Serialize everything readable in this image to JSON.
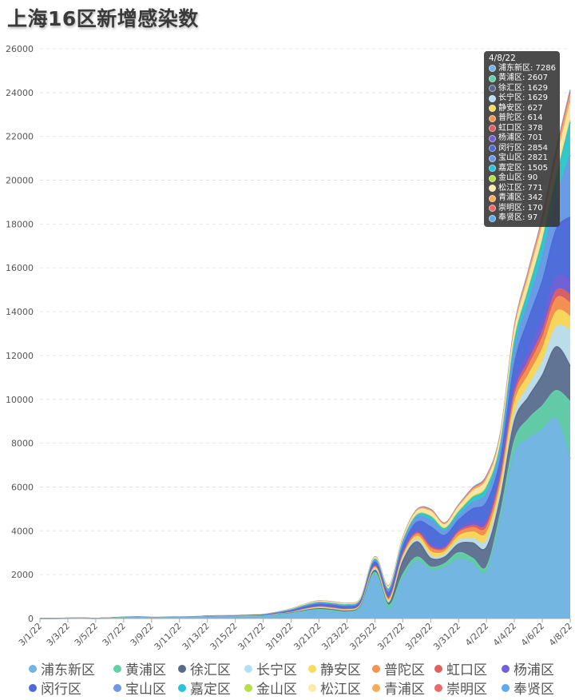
{
  "title": "上海16区新增感染数",
  "chart_data": {
    "type": "area",
    "stacked": true,
    "title": "上海16区新增感染数",
    "ylim": [
      0,
      26000
    ],
    "yticks": [
      0,
      2000,
      4000,
      6000,
      8000,
      10000,
      12000,
      14000,
      16000,
      18000,
      20000,
      22000,
      24000,
      26000
    ],
    "x": [
      "3/1/22",
      "3/2/22",
      "3/3/22",
      "3/4/22",
      "3/5/22",
      "3/6/22",
      "3/7/22",
      "3/8/22",
      "3/9/22",
      "3/10/22",
      "3/11/22",
      "3/12/22",
      "3/13/22",
      "3/14/22",
      "3/15/22",
      "3/16/22",
      "3/17/22",
      "3/18/22",
      "3/19/22",
      "3/20/22",
      "3/21/22",
      "3/22/22",
      "3/23/22",
      "3/24/22",
      "3/25/22",
      "3/26/22",
      "3/27/22",
      "3/28/22",
      "3/29/22",
      "3/30/22",
      "3/31/22",
      "4/1/22",
      "4/2/22",
      "4/3/22",
      "4/4/22",
      "4/5/22",
      "4/6/22",
      "4/7/22",
      "4/8/22"
    ],
    "xticks": [
      "3/1/22",
      "3/3/22",
      "3/5/22",
      "3/7/22",
      "3/9/22",
      "3/11/22",
      "3/13/22",
      "3/15/22",
      "3/17/22",
      "3/19/22",
      "3/21/22",
      "3/23/22",
      "3/25/22",
      "3/27/22",
      "3/29/22",
      "3/31/22",
      "4/2/22",
      "4/4/22",
      "4/6/22",
      "4/8/22"
    ],
    "grid": true,
    "legend_position": "bottom",
    "series": [
      {
        "name": "浦东新区",
        "color": "#73b4e6",
        "values": [
          2,
          3,
          5,
          8,
          4,
          10,
          30,
          50,
          20,
          30,
          40,
          50,
          60,
          70,
          80,
          90,
          100,
          150,
          200,
          300,
          350,
          300,
          250,
          500,
          2000,
          400,
          1800,
          2600,
          2200,
          2300,
          2700,
          2500,
          2100,
          4500,
          7500,
          8200,
          8600,
          9100,
          7286
        ]
      },
      {
        "name": "黄浦区",
        "color": "#62d1a8",
        "values": [
          1,
          1,
          2,
          2,
          1,
          3,
          5,
          5,
          5,
          5,
          5,
          5,
          10,
          10,
          10,
          10,
          10,
          20,
          30,
          40,
          60,
          60,
          50,
          50,
          100,
          200,
          200,
          200,
          150,
          200,
          300,
          250,
          250,
          300,
          600,
          900,
          1100,
          1300,
          2607
        ]
      },
      {
        "name": "徐汇区",
        "color": "#5a6a8c",
        "values": [
          0,
          1,
          1,
          1,
          1,
          2,
          3,
          3,
          3,
          3,
          3,
          3,
          5,
          5,
          5,
          5,
          5,
          10,
          20,
          30,
          40,
          40,
          40,
          40,
          100,
          100,
          600,
          700,
          400,
          300,
          400,
          700,
          900,
          700,
          900,
          1000,
          1400,
          2000,
          1629
        ]
      },
      {
        "name": "长宁区",
        "color": "#b5ddf5",
        "values": [
          0,
          0,
          1,
          1,
          1,
          1,
          2,
          2,
          2,
          2,
          2,
          2,
          3,
          3,
          3,
          3,
          4,
          6,
          10,
          20,
          20,
          20,
          20,
          20,
          50,
          60,
          80,
          100,
          100,
          100,
          150,
          200,
          300,
          250,
          300,
          500,
          600,
          900,
          1629
        ]
      },
      {
        "name": "静安区",
        "color": "#f7dc5c",
        "values": [
          0,
          0,
          1,
          1,
          0,
          1,
          2,
          2,
          2,
          2,
          2,
          2,
          3,
          3,
          3,
          3,
          4,
          6,
          10,
          20,
          30,
          30,
          30,
          30,
          60,
          80,
          100,
          150,
          200,
          150,
          200,
          300,
          350,
          300,
          500,
          500,
          600,
          700,
          627
        ]
      },
      {
        "name": "普陀区",
        "color": "#f5944f",
        "values": [
          0,
          0,
          0,
          1,
          0,
          1,
          2,
          2,
          2,
          2,
          2,
          2,
          3,
          3,
          3,
          3,
          4,
          6,
          10,
          15,
          20,
          20,
          20,
          20,
          50,
          60,
          80,
          100,
          150,
          100,
          150,
          200,
          250,
          250,
          300,
          400,
          500,
          600,
          614
        ]
      },
      {
        "name": "虹口区",
        "color": "#e06060",
        "values": [
          0,
          0,
          0,
          0,
          0,
          1,
          1,
          1,
          1,
          1,
          1,
          1,
          2,
          2,
          2,
          2,
          3,
          5,
          8,
          10,
          15,
          15,
          15,
          15,
          30,
          40,
          50,
          60,
          80,
          60,
          80,
          100,
          150,
          150,
          200,
          250,
          300,
          350,
          378
        ]
      },
      {
        "name": "杨浦区",
        "color": "#7360d8",
        "values": [
          0,
          0,
          0,
          0,
          0,
          1,
          1,
          1,
          1,
          1,
          1,
          1,
          2,
          2,
          2,
          2,
          3,
          5,
          8,
          10,
          15,
          15,
          15,
          15,
          30,
          40,
          50,
          80,
          100,
          80,
          100,
          150,
          200,
          200,
          300,
          400,
          500,
          600,
          701
        ]
      },
      {
        "name": "闵行区",
        "color": "#4e6ad8",
        "values": [
          1,
          1,
          2,
          2,
          1,
          3,
          5,
          5,
          5,
          5,
          5,
          5,
          10,
          10,
          10,
          15,
          20,
          30,
          50,
          80,
          100,
          100,
          100,
          100,
          150,
          200,
          300,
          400,
          800,
          500,
          400,
          600,
          800,
          600,
          1000,
          1500,
          1800,
          2200,
          2854
        ]
      },
      {
        "name": "宝山区",
        "color": "#6e98e6",
        "values": [
          0,
          1,
          1,
          1,
          1,
          2,
          3,
          3,
          3,
          3,
          3,
          3,
          5,
          5,
          5,
          10,
          10,
          20,
          30,
          40,
          50,
          50,
          50,
          50,
          80,
          100,
          150,
          200,
          300,
          200,
          200,
          300,
          400,
          400,
          600,
          800,
          1100,
          1400,
          2821
        ]
      },
      {
        "name": "嘉定区",
        "color": "#28c3d8",
        "values": [
          0,
          0,
          1,
          1,
          0,
          1,
          2,
          2,
          2,
          2,
          2,
          2,
          3,
          3,
          3,
          5,
          5,
          10,
          20,
          30,
          30,
          30,
          30,
          30,
          50,
          60,
          80,
          100,
          150,
          100,
          150,
          200,
          250,
          250,
          400,
          500,
          700,
          900,
          1505
        ]
      },
      {
        "name": "金山区",
        "color": "#b4e048",
        "values": [
          0,
          0,
          0,
          0,
          0,
          0,
          1,
          1,
          1,
          1,
          1,
          1,
          1,
          1,
          1,
          2,
          2,
          3,
          5,
          8,
          10,
          10,
          10,
          10,
          15,
          20,
          20,
          30,
          40,
          30,
          40,
          50,
          60,
          50,
          60,
          70,
          80,
          90,
          90
        ]
      },
      {
        "name": "松江区",
        "color": "#fde9a8",
        "values": [
          0,
          0,
          0,
          1,
          0,
          1,
          2,
          2,
          2,
          2,
          2,
          2,
          3,
          3,
          3,
          5,
          5,
          10,
          20,
          30,
          40,
          40,
          40,
          40,
          60,
          80,
          100,
          150,
          200,
          150,
          200,
          250,
          300,
          300,
          400,
          500,
          600,
          700,
          771
        ]
      },
      {
        "name": "青浦区",
        "color": "#f8ac5a",
        "values": [
          0,
          0,
          0,
          0,
          0,
          1,
          1,
          1,
          1,
          1,
          1,
          1,
          2,
          2,
          2,
          2,
          3,
          5,
          8,
          10,
          15,
          15,
          15,
          15,
          20,
          30,
          40,
          50,
          60,
          50,
          60,
          80,
          100,
          100,
          150,
          200,
          250,
          300,
          342
        ]
      },
      {
        "name": "崇明区",
        "color": "#ee6a6a",
        "values": [
          0,
          0,
          0,
          0,
          0,
          0,
          1,
          1,
          1,
          1,
          1,
          1,
          1,
          1,
          1,
          1,
          2,
          3,
          4,
          5,
          5,
          5,
          5,
          5,
          10,
          10,
          15,
          20,
          30,
          20,
          30,
          40,
          50,
          50,
          60,
          80,
          100,
          150,
          170
        ]
      },
      {
        "name": "奉贤区",
        "color": "#5eaaf0",
        "values": [
          0,
          0,
          0,
          0,
          0,
          0,
          1,
          1,
          1,
          1,
          1,
          1,
          1,
          1,
          1,
          1,
          2,
          3,
          4,
          5,
          5,
          5,
          5,
          5,
          10,
          10,
          15,
          20,
          30,
          20,
          30,
          40,
          50,
          50,
          60,
          70,
          80,
          90,
          97
        ]
      }
    ],
    "tooltip": {
      "title": "4/8/22",
      "index": 38
    }
  }
}
